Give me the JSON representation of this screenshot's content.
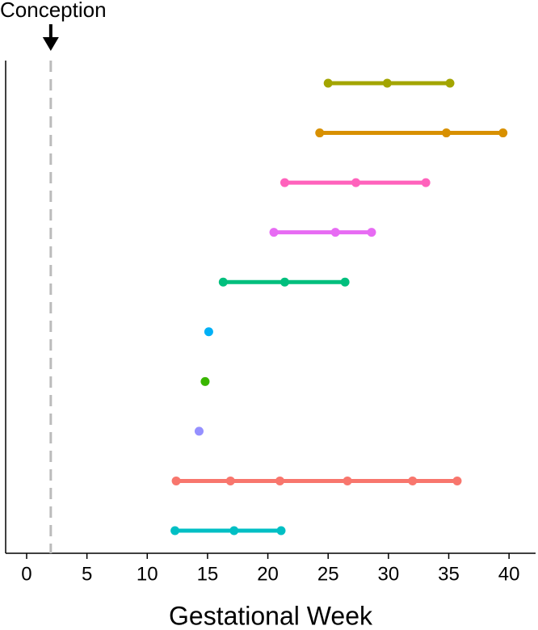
{
  "chart_data": {
    "type": "dot-range",
    "xlabel": "Gestational Week",
    "xlim": [
      -1.74,
      42.2
    ],
    "xticks": [
      0,
      5,
      10,
      15,
      20,
      25,
      30,
      35,
      40
    ],
    "annotations": [
      {
        "text": "Conception",
        "x": 2
      }
    ],
    "series": [
      {
        "color": "#a3a500",
        "values": [
          25.0,
          29.9,
          35.1
        ]
      },
      {
        "color": "#d89000",
        "values": [
          24.3,
          34.8,
          39.5
        ]
      },
      {
        "color": "#ff62bc",
        "values": [
          21.4,
          27.3,
          33.1
        ]
      },
      {
        "color": "#e76bf3",
        "values": [
          20.5,
          25.6,
          28.6
        ]
      },
      {
        "color": "#00bf7d",
        "values": [
          16.3,
          21.4,
          26.4
        ]
      },
      {
        "color": "#00b0f6",
        "values": [
          15.1
        ]
      },
      {
        "color": "#39b600",
        "values": [
          14.8
        ]
      },
      {
        "color": "#9590ff",
        "values": [
          14.3
        ]
      },
      {
        "color": "#f8766d",
        "values": [
          12.4,
          16.9,
          21.0,
          26.6,
          32.0,
          35.7
        ]
      },
      {
        "color": "#00bfc4",
        "values": [
          12.3,
          17.2,
          21.1
        ]
      }
    ]
  }
}
